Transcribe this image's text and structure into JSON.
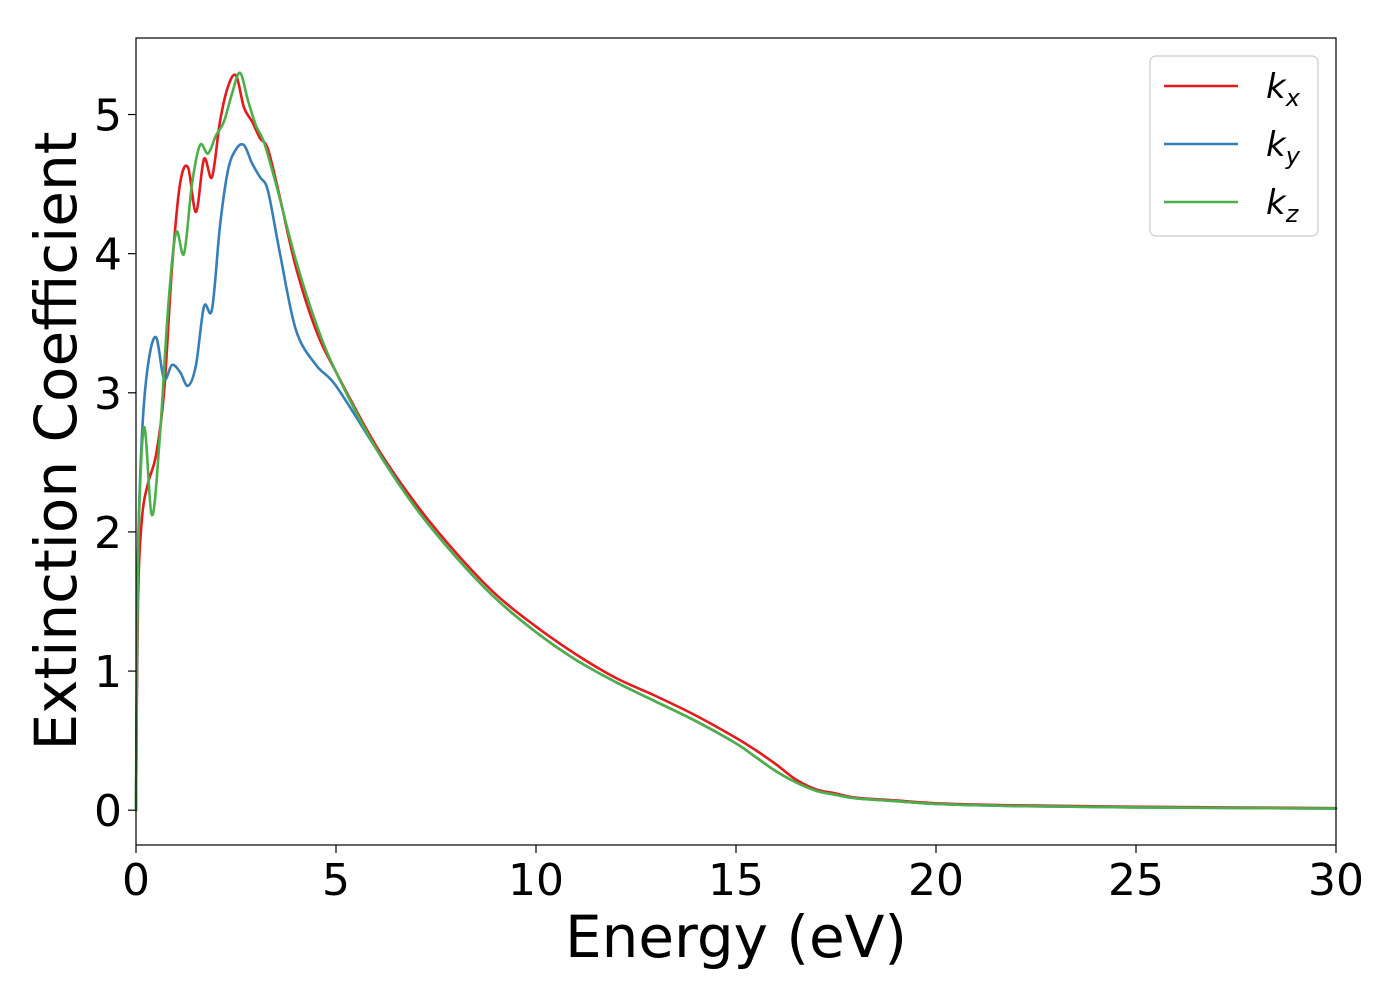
{
  "chart_data": {
    "type": "line",
    "title": "",
    "xlabel": "Energy (eV)",
    "ylabel": "Extinction Coefficient",
    "xlim": [
      0,
      30
    ],
    "ylim": [
      -0.25,
      5.55
    ],
    "xticks": [
      0,
      5,
      10,
      15,
      20,
      25,
      30
    ],
    "yticks": [
      0,
      1,
      2,
      3,
      4,
      5
    ],
    "grid": false,
    "legend_position": "top-right",
    "series": [
      {
        "name": "k",
        "subscript": "x",
        "color": "#e41a1c",
        "x": [
          0.0,
          0.05,
          0.15,
          0.3,
          0.5,
          0.7,
          0.9,
          1.1,
          1.3,
          1.5,
          1.7,
          1.9,
          2.1,
          2.3,
          2.5,
          2.7,
          2.9,
          3.1,
          3.3,
          3.6,
          4.0,
          4.5,
          5.0,
          6.0,
          7.0,
          8.0,
          9.0,
          10.0,
          11.0,
          12.0,
          13.0,
          14.0,
          15.0,
          15.5,
          16.0,
          16.5,
          17.0,
          17.5,
          18.0,
          19.0,
          20.0,
          22.0,
          25.0,
          30.0
        ],
        "y": [
          0.0,
          1.5,
          2.1,
          2.35,
          2.55,
          3.0,
          3.9,
          4.5,
          4.62,
          4.3,
          4.68,
          4.55,
          4.95,
          5.2,
          5.28,
          5.05,
          4.95,
          4.83,
          4.75,
          4.4,
          3.9,
          3.45,
          3.15,
          2.62,
          2.2,
          1.85,
          1.55,
          1.32,
          1.12,
          0.95,
          0.82,
          0.68,
          0.52,
          0.43,
          0.33,
          0.22,
          0.15,
          0.12,
          0.09,
          0.07,
          0.05,
          0.035,
          0.025,
          0.015
        ]
      },
      {
        "name": "k",
        "subscript": "y",
        "color": "#377eb8",
        "x": [
          0.0,
          0.05,
          0.15,
          0.3,
          0.5,
          0.7,
          0.9,
          1.1,
          1.3,
          1.5,
          1.7,
          1.9,
          2.1,
          2.3,
          2.5,
          2.7,
          2.9,
          3.1,
          3.3,
          3.6,
          4.0,
          4.5,
          5.0,
          6.0,
          7.0,
          8.0,
          9.0,
          10.0,
          11.0,
          12.0,
          13.0,
          14.0,
          15.0,
          15.5,
          16.0,
          16.5,
          17.0,
          17.5,
          18.0,
          19.0,
          20.0,
          22.0,
          25.0,
          30.0
        ],
        "y": [
          0.0,
          1.8,
          2.7,
          3.2,
          3.4,
          3.1,
          3.2,
          3.15,
          3.05,
          3.2,
          3.62,
          3.6,
          4.2,
          4.6,
          4.75,
          4.78,
          4.65,
          4.55,
          4.45,
          4.0,
          3.45,
          3.2,
          3.05,
          2.6,
          2.17,
          1.82,
          1.52,
          1.28,
          1.08,
          0.92,
          0.78,
          0.64,
          0.48,
          0.38,
          0.28,
          0.2,
          0.14,
          0.11,
          0.085,
          0.065,
          0.045,
          0.03,
          0.02,
          0.012
        ]
      },
      {
        "name": "k",
        "subscript": "z",
        "color": "#4daf4a",
        "x": [
          0.0,
          0.05,
          0.2,
          0.4,
          0.6,
          0.8,
          1.0,
          1.2,
          1.4,
          1.6,
          1.8,
          2.0,
          2.2,
          2.4,
          2.6,
          2.8,
          3.0,
          3.2,
          3.5,
          4.0,
          4.5,
          5.0,
          6.0,
          7.0,
          8.0,
          9.0,
          10.0,
          11.0,
          12.0,
          13.0,
          14.0,
          15.0,
          15.5,
          16.0,
          16.5,
          17.0,
          17.5,
          18.0,
          19.0,
          20.0,
          22.0,
          25.0,
          30.0
        ],
        "y": [
          0.0,
          1.8,
          2.75,
          2.12,
          2.7,
          3.6,
          4.15,
          4.0,
          4.5,
          4.78,
          4.72,
          4.85,
          4.95,
          5.15,
          5.3,
          5.1,
          4.92,
          4.8,
          4.5,
          3.95,
          3.5,
          3.15,
          2.6,
          2.17,
          1.82,
          1.52,
          1.28,
          1.08,
          0.92,
          0.78,
          0.64,
          0.48,
          0.38,
          0.28,
          0.2,
          0.14,
          0.11,
          0.085,
          0.065,
          0.045,
          0.03,
          0.02,
          0.012
        ]
      }
    ]
  }
}
